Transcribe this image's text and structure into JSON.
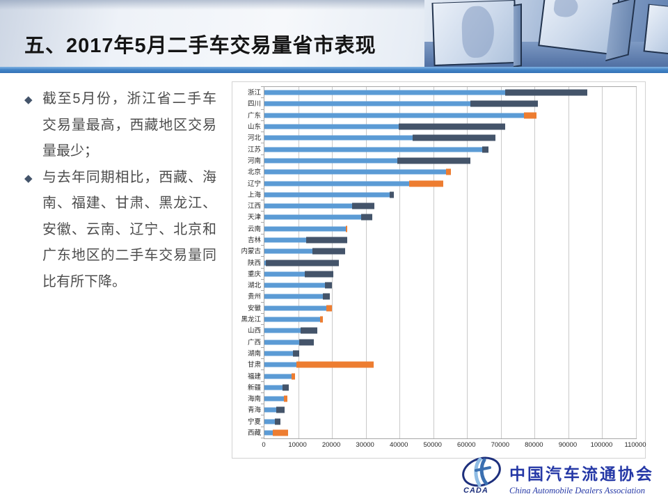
{
  "slide": {
    "title": "五、2017年5月二手车交易量省市表现",
    "bullet_marker": "◆",
    "bullets": [
      "截至5月份，浙江省二手车交易量最高，西藏地区交易量最少；",
      "与去年同期相比，西藏、海南、福建、甘肃、黑龙江、安徽、云南、辽宁、北京和广东地区的二手车交易量同比有所下降。"
    ]
  },
  "chart_data": {
    "type": "bar",
    "orientation": "horizontal",
    "title": "",
    "xlabel": "",
    "ylabel": "",
    "xlim": [
      0,
      110000
    ],
    "xticks": [
      0,
      10000,
      20000,
      30000,
      40000,
      50000,
      60000,
      70000,
      80000,
      90000,
      100000,
      110000
    ],
    "grid": true,
    "legend": "none",
    "colors": {
      "base": "#5B9BD5",
      "increase": "#44546A",
      "decrease": "#ED7D31"
    },
    "note": "each row: blue base bar plus extension segment; dark = year-over-year increase, orange = decrease",
    "rows": [
      {
        "label": "浙江",
        "base": 71300,
        "end": 95500,
        "change": "increase"
      },
      {
        "label": "四川",
        "base": 61000,
        "end": 81000,
        "change": "increase"
      },
      {
        "label": "广东",
        "base": 76800,
        "end": 80600,
        "change": "decrease"
      },
      {
        "label": "山东",
        "base": 39700,
        "end": 71300,
        "change": "increase"
      },
      {
        "label": "河北",
        "base": 43800,
        "end": 68400,
        "change": "increase"
      },
      {
        "label": "江苏",
        "base": 64500,
        "end": 66400,
        "change": "increase"
      },
      {
        "label": "河南",
        "base": 39300,
        "end": 61000,
        "change": "increase"
      },
      {
        "label": "北京",
        "base": 53700,
        "end": 55200,
        "change": "decrease"
      },
      {
        "label": "辽宁",
        "base": 42800,
        "end": 52900,
        "change": "decrease"
      },
      {
        "label": "上海",
        "base": 37100,
        "end": 38400,
        "change": "increase"
      },
      {
        "label": "江西",
        "base": 26000,
        "end": 32600,
        "change": "increase"
      },
      {
        "label": "天津",
        "base": 28600,
        "end": 32000,
        "change": "increase"
      },
      {
        "label": "云南",
        "base": 24200,
        "end": 24600,
        "change": "decrease"
      },
      {
        "label": "吉林",
        "base": 12400,
        "end": 24600,
        "change": "increase"
      },
      {
        "label": "内蒙古",
        "base": 14300,
        "end": 23900,
        "change": "increase"
      },
      {
        "label": "陕西",
        "base": 500,
        "end": 22100,
        "change": "increase"
      },
      {
        "label": "重庆",
        "base": 12000,
        "end": 20300,
        "change": "increase"
      },
      {
        "label": "湖北",
        "base": 17900,
        "end": 20000,
        "change": "increase"
      },
      {
        "label": "贵州",
        "base": 17300,
        "end": 19300,
        "change": "increase"
      },
      {
        "label": "安徽",
        "base": 18300,
        "end": 19900,
        "change": "decrease"
      },
      {
        "label": "黑龙江",
        "base": 16500,
        "end": 17400,
        "change": "decrease"
      },
      {
        "label": "山西",
        "base": 10700,
        "end": 15700,
        "change": "increase"
      },
      {
        "label": "广西",
        "base": 10200,
        "end": 14600,
        "change": "increase"
      },
      {
        "label": "湖南",
        "base": 8400,
        "end": 10300,
        "change": "increase"
      },
      {
        "label": "甘肃",
        "base": 9400,
        "end": 32300,
        "change": "decrease"
      },
      {
        "label": "福建",
        "base": 8100,
        "end": 9100,
        "change": "decrease"
      },
      {
        "label": "新疆",
        "base": 5300,
        "end": 7200,
        "change": "increase"
      },
      {
        "label": "海南",
        "base": 5800,
        "end": 6900,
        "change": "decrease"
      },
      {
        "label": "青海",
        "base": 3500,
        "end": 6000,
        "change": "increase"
      },
      {
        "label": "宁夏",
        "base": 3000,
        "end": 4800,
        "change": "increase"
      },
      {
        "label": "西藏",
        "base": 2500,
        "end": 7000,
        "change": "decrease"
      }
    ]
  },
  "footer": {
    "logo_acronym": "CADA",
    "org_cn": "中国汽车流通协会",
    "org_en": "China Automobile Dealers Association",
    "logo_color": "#1d2f7c",
    "text_color": "#2538a6"
  },
  "theme": {
    "header_band_color": "#3372B6",
    "bullet_marker_color": "#44546A"
  }
}
